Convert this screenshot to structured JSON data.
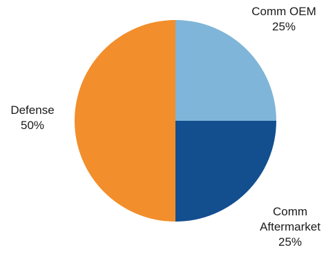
{
  "chart_data": {
    "type": "pie",
    "title": "",
    "slices": [
      {
        "label": [
          "Comm OEM"
        ],
        "value": 25,
        "display": "25%",
        "color": "#7fb5d8"
      },
      {
        "label": [
          "Comm",
          "Aftermarket"
        ],
        "value": 25,
        "display": "25%",
        "color": "#134e8f"
      },
      {
        "label": [
          "Defense"
        ],
        "value": 50,
        "display": "50%",
        "color": "#f28e2b"
      }
    ],
    "start_angle_deg": 0,
    "direction": "clockwise",
    "legend": "none"
  }
}
